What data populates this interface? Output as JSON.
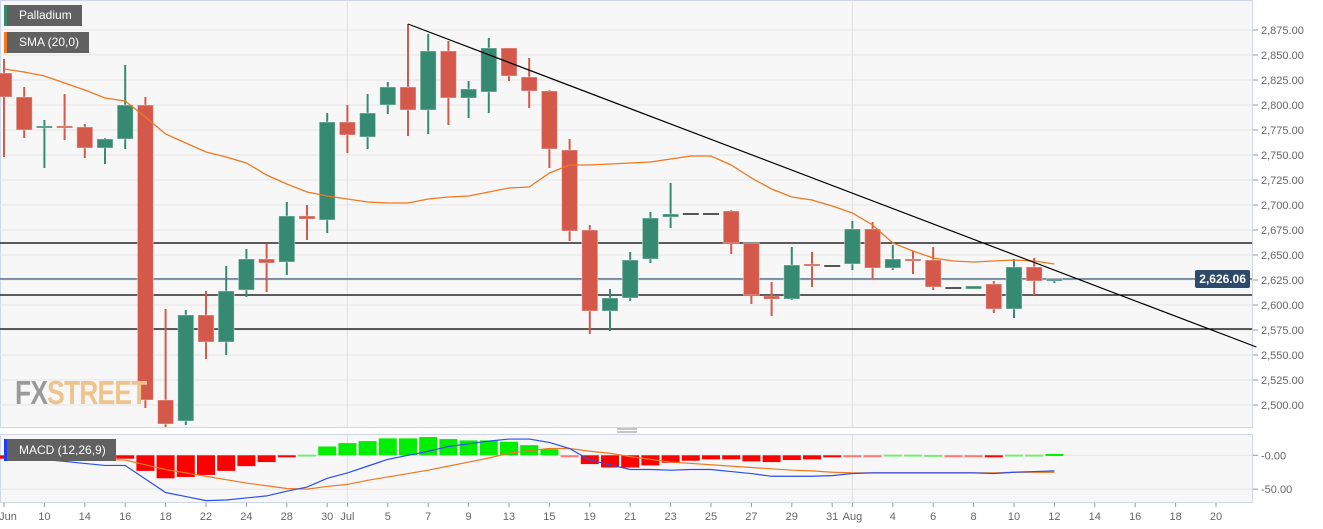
{
  "legend": {
    "symbol": "Palladium",
    "sma": "SMA (20,0)",
    "macd": "MACD (12,26,9)"
  },
  "watermark": {
    "fx": "FX",
    "street": "STREET"
  },
  "colors": {
    "up": "#358a71",
    "down": "#d4594a",
    "flat": "#555555",
    "sma": "#f07820",
    "macd_line": "#2b4ef0",
    "signal_line": "#f07820",
    "hist_up": "#00ee00",
    "hist_down": "#ff0000",
    "current_price": "#2d4a6b",
    "support_resistance": "#000000",
    "trendline": "#000000"
  },
  "chart_data": [
    {
      "type": "candlestick",
      "title": "Palladium",
      "ylim": [
        2478,
        2904
      ],
      "yticks": [
        2500,
        2525,
        2550,
        2575,
        2600,
        2625,
        2650,
        2675,
        2700,
        2725,
        2750,
        2775,
        2800,
        2825,
        2850,
        2875
      ],
      "ytick_labels": [
        "2,500.00",
        "2,525.00",
        "2,550.00",
        "2,575.00",
        "2,600.00",
        "2,625.00",
        "2,650.00",
        "2,675.00",
        "2,700.00",
        "2,725.00",
        "2,750.00",
        "2,775.00",
        "2,800.00",
        "2,825.00",
        "2,850.00",
        "2,875.00"
      ],
      "current_price": 2626.06,
      "current_price_label": "2,626.06",
      "xticks": [
        {
          "bar": 0,
          "label": "Jun"
        },
        {
          "bar": 2,
          "label": "10"
        },
        {
          "bar": 4,
          "label": "14"
        },
        {
          "bar": 6,
          "label": "16"
        },
        {
          "bar": 8,
          "label": "18"
        },
        {
          "bar": 10,
          "label": "22"
        },
        {
          "bar": 12,
          "label": "24"
        },
        {
          "bar": 14,
          "label": "28"
        },
        {
          "bar": 16,
          "label": "30"
        },
        {
          "bar": 17,
          "label": "Jul"
        },
        {
          "bar": 19,
          "label": "5"
        },
        {
          "bar": 21,
          "label": "7"
        },
        {
          "bar": 23,
          "label": "9"
        },
        {
          "bar": 25,
          "label": "13"
        },
        {
          "bar": 27,
          "label": "15"
        },
        {
          "bar": 29,
          "label": "19"
        },
        {
          "bar": 31,
          "label": "21"
        },
        {
          "bar": 33,
          "label": "23"
        },
        {
          "bar": 35,
          "label": "25"
        },
        {
          "bar": 37,
          "label": "27"
        },
        {
          "bar": 39,
          "label": "29"
        },
        {
          "bar": 41,
          "label": "31"
        },
        {
          "bar": 42,
          "label": "Aug"
        },
        {
          "bar": 44,
          "label": "4"
        },
        {
          "bar": 46,
          "label": "6"
        },
        {
          "bar": 48,
          "label": "8"
        },
        {
          "bar": 50,
          "label": "10"
        },
        {
          "bar": 52,
          "label": "12"
        },
        {
          "bar": 54,
          "label": "14"
        },
        {
          "bar": 56,
          "label": "16"
        },
        {
          "bar": 58,
          "label": "18"
        },
        {
          "bar": 60,
          "label": "20"
        }
      ],
      "ohlc": [
        [
          2832,
          2846,
          2748,
          2808
        ],
        [
          2808,
          2818,
          2767,
          2775
        ],
        [
          2777,
          2785,
          2737,
          2779
        ],
        [
          2779,
          2811,
          2765,
          2778
        ],
        [
          2778,
          2781,
          2747,
          2757
        ],
        [
          2757,
          2767,
          2741,
          2766
        ],
        [
          2766,
          2840,
          2756,
          2800
        ],
        [
          2800,
          2808,
          2497,
          2505
        ],
        [
          2505,
          2596,
          2478,
          2481
        ],
        [
          2484,
          2595,
          2480,
          2590
        ],
        [
          2590,
          2614,
          2546,
          2563
        ],
        [
          2563,
          2639,
          2550,
          2614
        ],
        [
          2615,
          2656,
          2608,
          2646
        ],
        [
          2646,
          2661,
          2613,
          2642
        ],
        [
          2643,
          2703,
          2630,
          2689
        ],
        [
          2689,
          2700,
          2665,
          2686
        ],
        [
          2685,
          2792,
          2672,
          2783
        ],
        [
          2783,
          2800,
          2752,
          2770
        ],
        [
          2768,
          2811,
          2756,
          2792
        ],
        [
          2800,
          2823,
          2791,
          2818
        ],
        [
          2818,
          2881,
          2769,
          2795
        ],
        [
          2795,
          2871,
          2771,
          2854
        ],
        [
          2854,
          2864,
          2780,
          2807
        ],
        [
          2807,
          2824,
          2787,
          2816
        ],
        [
          2813,
          2867,
          2792,
          2857
        ],
        [
          2857,
          2857,
          2824,
          2829
        ],
        [
          2828,
          2847,
          2797,
          2814
        ],
        [
          2814,
          2815,
          2737,
          2756
        ],
        [
          2755,
          2766,
          2664,
          2674
        ],
        [
          2675,
          2680,
          2571,
          2594
        ],
        [
          2594,
          2616,
          2574,
          2607
        ],
        [
          2607,
          2653,
          2604,
          2645
        ],
        [
          2646,
          2693,
          2642,
          2687
        ],
        [
          2688,
          2722,
          2677,
          2691
        ],
        [
          2691,
          2691,
          2691,
          2691
        ],
        [
          2691,
          2691,
          2691,
          2691
        ],
        [
          2694,
          2695,
          2651,
          2662
        ],
        [
          2662,
          2662,
          2601,
          2610
        ],
        [
          2609,
          2623,
          2589,
          2606
        ],
        [
          2606,
          2658,
          2605,
          2640
        ],
        [
          2641,
          2653,
          2618,
          2639
        ],
        [
          2639,
          2639,
          2639,
          2639
        ],
        [
          2641,
          2684,
          2635,
          2676
        ],
        [
          2676,
          2683,
          2626,
          2637
        ],
        [
          2637,
          2660,
          2635,
          2646
        ],
        [
          2646,
          2654,
          2631,
          2644
        ],
        [
          2645,
          2658,
          2615,
          2618
        ],
        [
          2617,
          2617,
          2617,
          2617
        ],
        [
          2616,
          2619,
          2616,
          2619
        ],
        [
          2621,
          2624,
          2592,
          2596
        ],
        [
          2596,
          2646,
          2587,
          2638
        ],
        [
          2638,
          2647,
          2610,
          2624
        ],
        [
          2624,
          2626,
          2622,
          2626
        ]
      ],
      "sma_20": [
        2836,
        2833,
        2829,
        2822,
        2815,
        2807,
        2804,
        2788,
        2771,
        2762,
        2753,
        2748,
        2742,
        2730,
        2721,
        2713,
        2709,
        2706,
        2703,
        2702,
        2702,
        2706,
        2708,
        2709,
        2713,
        2717,
        2718,
        2732,
        2740,
        2740,
        2741,
        2742,
        2743,
        2746,
        2749,
        2749,
        2740,
        2727,
        2716,
        2708,
        2705,
        2699,
        2692,
        2680,
        2662,
        2654,
        2647,
        2644,
        2643,
        2644,
        2645,
        2644,
        2641
      ],
      "horizontal_levels": [
        2662,
        2610,
        2576
      ],
      "trendline": [
        {
          "bar": 20,
          "price": 2881
        },
        {
          "bar": 62,
          "price": 2558
        }
      ]
    },
    {
      "type": "macd",
      "title": "MACD (12,26,9)",
      "ylim": [
        -69,
        30
      ],
      "yticks": [
        0,
        -50
      ],
      "ytick_labels": [
        "-0.00",
        "-50.00"
      ],
      "macd": [
        -2,
        -4,
        -6,
        -9,
        -12,
        -15,
        -15,
        -35,
        -55,
        -61,
        -67,
        -66,
        -63,
        -60,
        -53,
        -47,
        -34,
        -26,
        -16,
        -6,
        0,
        6,
        13,
        17,
        21,
        24,
        24,
        19,
        10,
        -7,
        -14,
        -21,
        -21,
        -22,
        -21,
        -21,
        -24,
        -27,
        -31,
        -31,
        -31,
        -30,
        -27,
        -26,
        -26,
        -26,
        -26,
        -26,
        -26,
        -27,
        -25,
        -24,
        -23
      ],
      "signal": [
        3,
        1,
        -1,
        -2,
        -4,
        -6,
        -7,
        -14,
        -21,
        -26,
        -31,
        -36,
        -41,
        -45,
        -49,
        -50,
        -46,
        -43,
        -37,
        -32,
        -27,
        -22,
        -16,
        -10,
        -4,
        3,
        7,
        10,
        10,
        6,
        3,
        -2,
        -6,
        -10,
        -12,
        -14,
        -16,
        -18,
        -20,
        -22,
        -23,
        -25,
        -26,
        -26,
        -26,
        -26,
        -26,
        -26,
        -26,
        -26,
        -25,
        -25,
        -25
      ],
      "histogram": [
        -5,
        -6,
        -6,
        -6,
        -6,
        -5,
        -5,
        -23,
        -34,
        -32,
        -29,
        -23,
        -16,
        -10,
        -2,
        1,
        13,
        18,
        21,
        25,
        25,
        27,
        24,
        22,
        22,
        20,
        15,
        9,
        -1,
        -13,
        -18,
        -18,
        -15,
        -11,
        -8,
        -6,
        -6,
        -9,
        -10,
        -7,
        -6,
        -3,
        -1,
        -1,
        1,
        1,
        0.5,
        -1,
        -1,
        -2,
        1,
        1,
        2
      ]
    }
  ]
}
